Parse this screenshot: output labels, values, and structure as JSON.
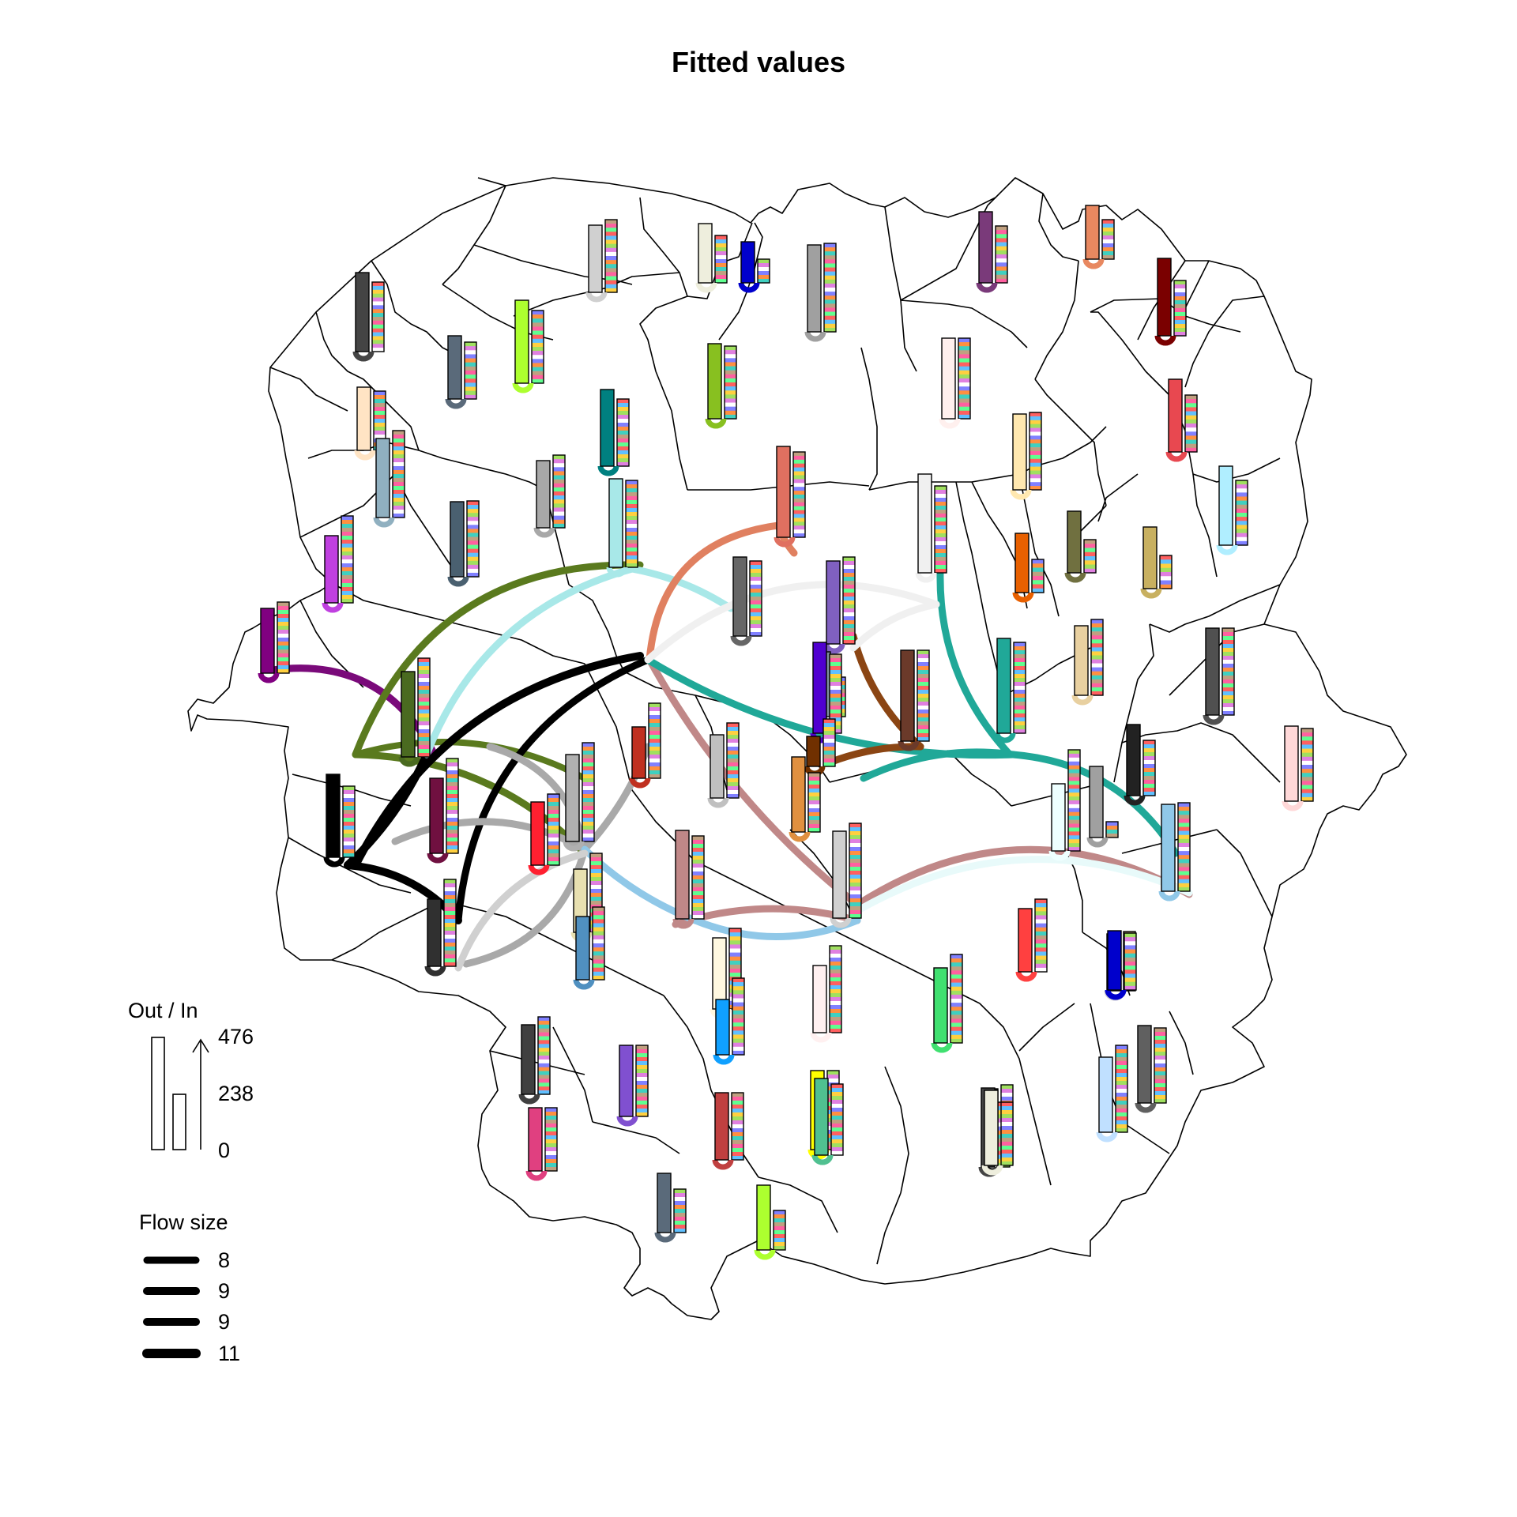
{
  "title": "Fitted values",
  "legend": {
    "bars_title": "Out / In",
    "bar_ticks": [
      "476",
      "238",
      "0"
    ],
    "flow_title": "Flow size",
    "flow_items": [
      "8",
      "9",
      "9",
      "11"
    ]
  },
  "chart_data": {
    "type": "flow-map",
    "bars_scale": [
      0,
      238,
      476
    ],
    "flow_sizes": [
      8,
      9,
      9,
      11
    ],
    "flow_colors": [
      "#7a0a7a",
      "#5a7a1e",
      "#000000",
      "#a9a9a9",
      "#a8e8e8",
      "#e08060",
      "#c08888",
      "#20a898",
      "#8b4513",
      "#90c8e8",
      "#d0d0d0",
      "#f0f0f0",
      "#6b3a2a",
      "#e8fafa"
    ],
    "origin_colors": [
      "#444444",
      "#5a6a7a",
      "#adff2f",
      "#d0d0d0",
      "#eeeedd",
      "#0000cc",
      "#a0a0a0",
      "#7a3a7a",
      "#e88860",
      "#7a0000",
      "#ffe4c4",
      "#90b0c0",
      "#008080",
      "#88c020",
      "#fff0ee",
      "#e84850",
      "#ffe8b0",
      "#a8a8a8",
      "#a8e8e8",
      "#e07060",
      "#4a6070",
      "#f0f0f0",
      "#c040e0",
      "#800080",
      "#666666",
      "#8060c0",
      "#e86000",
      "#707040",
      "#c8b060",
      "#b0eeff",
      "#e8d0a0",
      "#505050",
      "#4a6a20",
      "#000000",
      "#8090a0",
      "#5000d0",
      "#703000",
      "#6b3a2a",
      "#20a898",
      "#e09040",
      "#c0c0c0",
      "#c03020",
      "#b0b0b0",
      "#ffd8d8",
      "#222222",
      "#eeffff",
      "#90c8e8",
      "#c08888",
      "#d0d0d0",
      "#701040",
      "#ff2030",
      "#e8e0b0",
      "#ff4040",
      "#303030",
      "#40e070",
      "#5090c0",
      "#fff8e0",
      "#fff0f0",
      "#404040",
      "#8050d0",
      "#10a0ff",
      "#ffff00",
      "#e04080",
      "#c04040",
      "#50c090",
      "#111111",
      "#c0e0ff",
      "#606060"
    ]
  }
}
